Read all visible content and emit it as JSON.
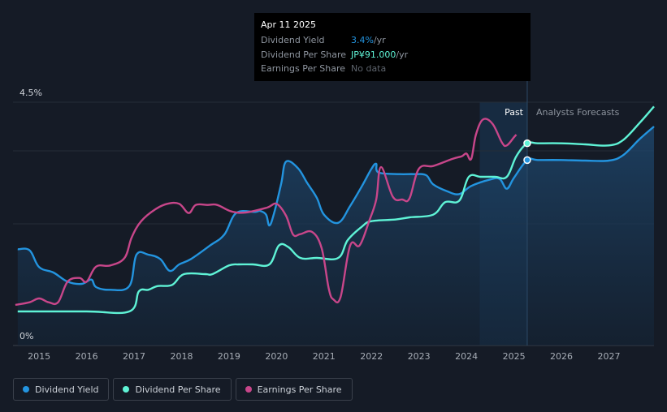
{
  "tooltip": {
    "date": "Apr 11 2025",
    "rows": [
      {
        "label": "Dividend Yield",
        "value": "3.4%",
        "unit": " /yr"
      },
      {
        "label": "Dividend Per Share",
        "value": "JP¥91.000",
        "unit": " /yr"
      },
      {
        "label": "Earnings Per Share",
        "value": "No data",
        "unit": ""
      }
    ]
  },
  "legend": [
    {
      "label": "Dividend Yield",
      "color": "#2394df"
    },
    {
      "label": "Dividend Per Share",
      "color": "#5ff3d6"
    },
    {
      "label": "Earnings Per Share",
      "color": "#c8468a"
    }
  ],
  "regions": {
    "past_label": "Past",
    "forecast_label": "Analysts Forecasts"
  },
  "chart_data": {
    "type": "line",
    "y_axis": {
      "top_label": "4.5%",
      "bottom_label": "0%",
      "ylim": [
        0,
        4.5
      ]
    },
    "x_ticks": [
      "2015",
      "2016",
      "2017",
      "2018",
      "2019",
      "2020",
      "2021",
      "2022",
      "2023",
      "2024",
      "2025",
      "2026",
      "2027"
    ],
    "xlim": [
      2014.45,
      2027.95
    ],
    "past_until": 2025.28,
    "forecast_shading_from": 2024.28,
    "series": [
      {
        "name": "Dividend Yield",
        "color": "#2394df",
        "marker_at": [
          2025.28,
          3.43
        ],
        "points": [
          [
            2014.55,
            1.78
          ],
          [
            2014.8,
            1.76
          ],
          [
            2015.0,
            1.45
          ],
          [
            2015.3,
            1.35
          ],
          [
            2015.6,
            1.18
          ],
          [
            2015.9,
            1.14
          ],
          [
            2016.1,
            1.22
          ],
          [
            2016.2,
            1.08
          ],
          [
            2016.5,
            1.03
          ],
          [
            2016.9,
            1.1
          ],
          [
            2017.05,
            1.68
          ],
          [
            2017.3,
            1.68
          ],
          [
            2017.55,
            1.6
          ],
          [
            2017.75,
            1.38
          ],
          [
            2017.95,
            1.5
          ],
          [
            2018.2,
            1.6
          ],
          [
            2018.6,
            1.85
          ],
          [
            2018.9,
            2.05
          ],
          [
            2019.15,
            2.45
          ],
          [
            2019.55,
            2.47
          ],
          [
            2019.65,
            2.49
          ],
          [
            2019.78,
            2.42
          ],
          [
            2019.85,
            2.22
          ],
          [
            2019.95,
            2.45
          ],
          [
            2020.1,
            3.0
          ],
          [
            2020.2,
            3.4
          ],
          [
            2020.45,
            3.28
          ],
          [
            2020.65,
            3.0
          ],
          [
            2020.85,
            2.73
          ],
          [
            2021.0,
            2.42
          ],
          [
            2021.3,
            2.27
          ],
          [
            2021.55,
            2.58
          ],
          [
            2021.8,
            2.95
          ],
          [
            2022.0,
            3.27
          ],
          [
            2022.1,
            3.36
          ],
          [
            2022.15,
            3.2
          ],
          [
            2022.6,
            3.17
          ],
          [
            2022.9,
            3.17
          ],
          [
            2023.15,
            3.15
          ],
          [
            2023.3,
            2.98
          ],
          [
            2023.6,
            2.85
          ],
          [
            2023.85,
            2.8
          ],
          [
            2024.1,
            2.95
          ],
          [
            2024.5,
            3.07
          ],
          [
            2024.7,
            3.08
          ],
          [
            2024.85,
            2.9
          ],
          [
            2025.0,
            3.1
          ],
          [
            2025.28,
            3.43
          ],
          [
            2025.5,
            3.43
          ],
          [
            2026.0,
            3.43
          ],
          [
            2026.5,
            3.42
          ],
          [
            2027.0,
            3.42
          ],
          [
            2027.3,
            3.52
          ],
          [
            2027.65,
            3.82
          ],
          [
            2027.95,
            4.05
          ]
        ]
      },
      {
        "name": "Dividend Per Share",
        "color": "#5ff3d6",
        "marker_at": [
          2025.28,
          3.74
        ],
        "points": [
          [
            2014.55,
            0.63
          ],
          [
            2016.0,
            0.63
          ],
          [
            2016.9,
            0.63
          ],
          [
            2017.1,
            1.0
          ],
          [
            2017.3,
            1.03
          ],
          [
            2017.5,
            1.1
          ],
          [
            2017.8,
            1.12
          ],
          [
            2018.05,
            1.32
          ],
          [
            2018.5,
            1.32
          ],
          [
            2018.65,
            1.32
          ],
          [
            2019.0,
            1.48
          ],
          [
            2019.2,
            1.5
          ],
          [
            2019.5,
            1.5
          ],
          [
            2019.85,
            1.5
          ],
          [
            2020.05,
            1.85
          ],
          [
            2020.25,
            1.82
          ],
          [
            2020.5,
            1.62
          ],
          [
            2020.85,
            1.62
          ],
          [
            2021.3,
            1.62
          ],
          [
            2021.5,
            1.95
          ],
          [
            2021.8,
            2.2
          ],
          [
            2022.0,
            2.3
          ],
          [
            2022.5,
            2.33
          ],
          [
            2022.8,
            2.37
          ],
          [
            2023.3,
            2.42
          ],
          [
            2023.55,
            2.65
          ],
          [
            2023.85,
            2.68
          ],
          [
            2024.05,
            3.12
          ],
          [
            2024.3,
            3.12
          ],
          [
            2024.6,
            3.12
          ],
          [
            2024.85,
            3.12
          ],
          [
            2025.05,
            3.5
          ],
          [
            2025.28,
            3.74
          ],
          [
            2025.5,
            3.74
          ],
          [
            2026.0,
            3.74
          ],
          [
            2026.5,
            3.72
          ],
          [
            2027.0,
            3.7
          ],
          [
            2027.3,
            3.8
          ],
          [
            2027.65,
            4.12
          ],
          [
            2027.95,
            4.42
          ]
        ]
      },
      {
        "name": "Earnings Per Share",
        "color": "#c8468a",
        "points": [
          [
            2014.5,
            0.75
          ],
          [
            2014.8,
            0.8
          ],
          [
            2015.0,
            0.87
          ],
          [
            2015.2,
            0.8
          ],
          [
            2015.4,
            0.8
          ],
          [
            2015.6,
            1.18
          ],
          [
            2015.85,
            1.25
          ],
          [
            2016.0,
            1.18
          ],
          [
            2016.2,
            1.46
          ],
          [
            2016.5,
            1.48
          ],
          [
            2016.8,
            1.62
          ],
          [
            2016.95,
            2.0
          ],
          [
            2017.15,
            2.3
          ],
          [
            2017.45,
            2.52
          ],
          [
            2017.7,
            2.62
          ],
          [
            2017.95,
            2.62
          ],
          [
            2018.15,
            2.45
          ],
          [
            2018.3,
            2.6
          ],
          [
            2018.55,
            2.6
          ],
          [
            2018.75,
            2.6
          ],
          [
            2019.05,
            2.48
          ],
          [
            2019.35,
            2.46
          ],
          [
            2019.8,
            2.55
          ],
          [
            2020.0,
            2.62
          ],
          [
            2020.2,
            2.4
          ],
          [
            2020.35,
            2.05
          ],
          [
            2020.5,
            2.06
          ],
          [
            2020.75,
            2.1
          ],
          [
            2020.95,
            1.8
          ],
          [
            2021.1,
            1.05
          ],
          [
            2021.2,
            0.85
          ],
          [
            2021.35,
            0.9
          ],
          [
            2021.55,
            1.85
          ],
          [
            2021.75,
            1.85
          ],
          [
            2021.95,
            2.3
          ],
          [
            2022.1,
            2.7
          ],
          [
            2022.2,
            3.3
          ],
          [
            2022.45,
            2.75
          ],
          [
            2022.65,
            2.7
          ],
          [
            2022.8,
            2.72
          ],
          [
            2023.0,
            3.27
          ],
          [
            2023.3,
            3.32
          ],
          [
            2023.7,
            3.45
          ],
          [
            2023.9,
            3.5
          ],
          [
            2024.0,
            3.55
          ],
          [
            2024.1,
            3.45
          ],
          [
            2024.2,
            3.9
          ],
          [
            2024.35,
            4.18
          ],
          [
            2024.55,
            4.1
          ],
          [
            2024.75,
            3.75
          ],
          [
            2024.85,
            3.7
          ],
          [
            2025.0,
            3.85
          ],
          [
            2025.05,
            3.9
          ]
        ]
      }
    ]
  }
}
